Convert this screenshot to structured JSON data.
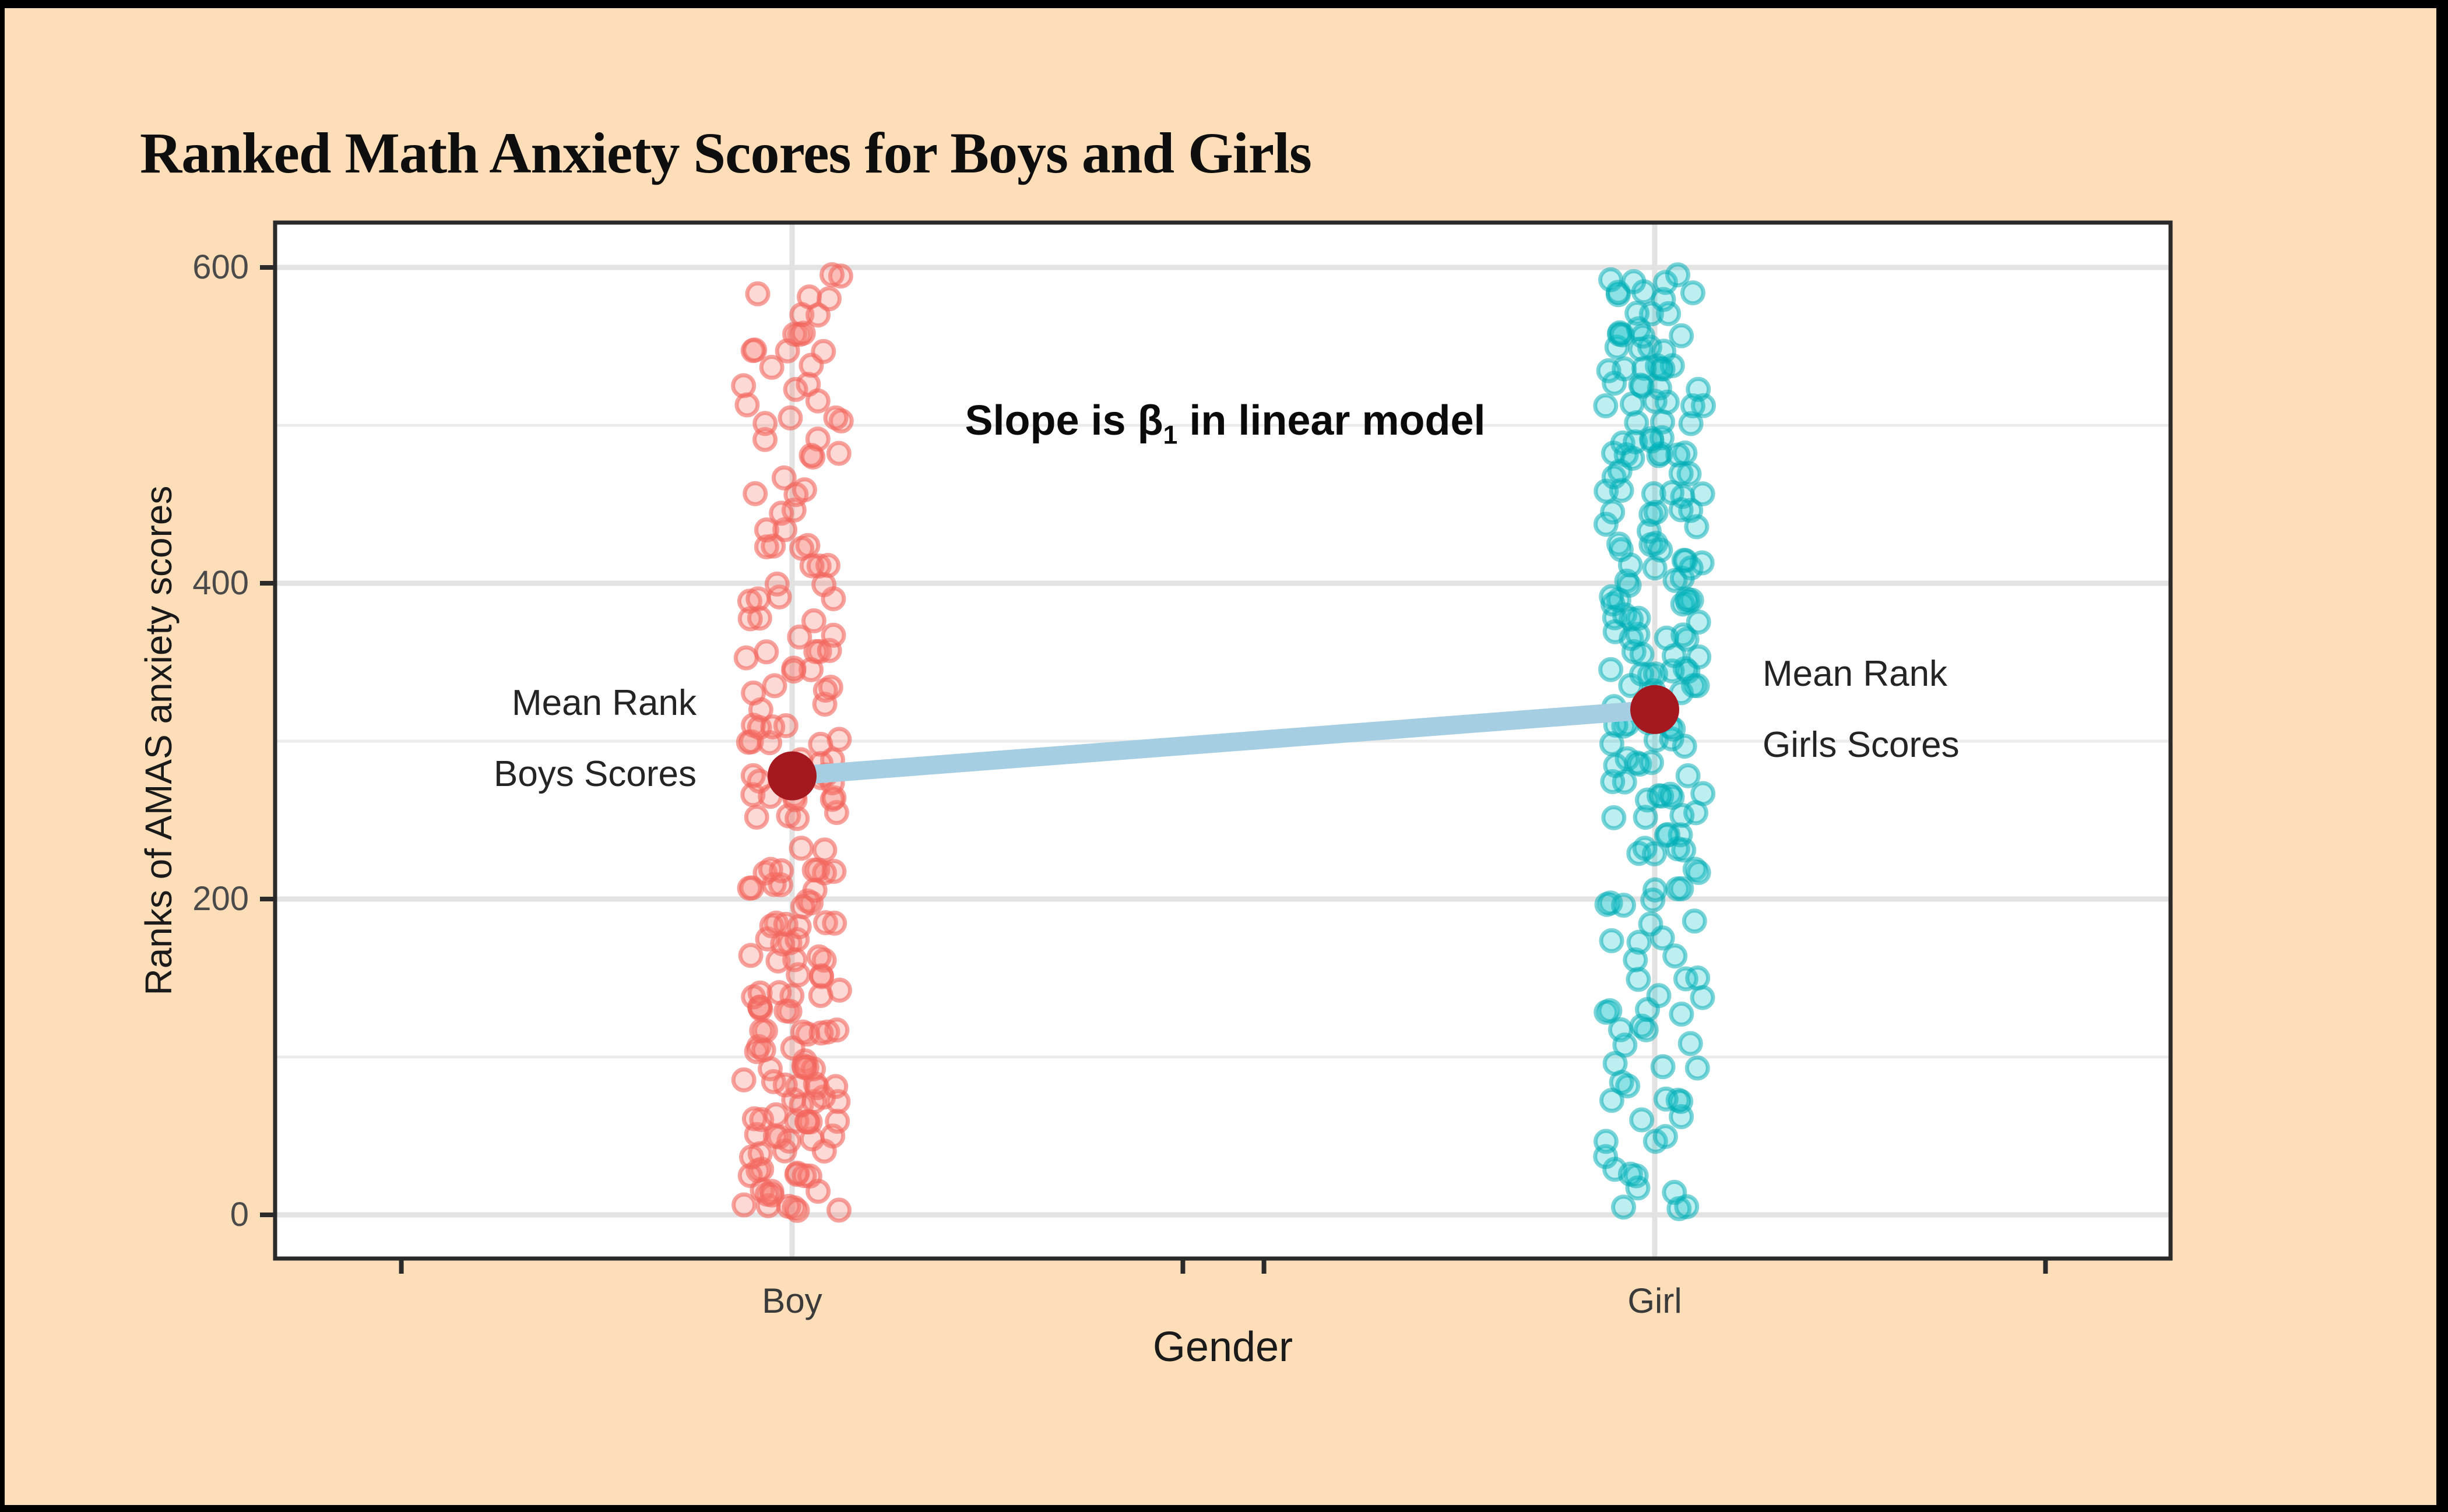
{
  "header": {
    "title": "Ranked Math Anxiety Scores for Boys and Girls"
  },
  "colors": {
    "background": "#FDDEB8",
    "frame": "#000000",
    "panel": "#FFFFFF",
    "panel_border": "#2A2A2A",
    "grid_major": "#E3E3E3",
    "grid_minor": "#EBEBEB",
    "grid_vertical": "#E2E2E2",
    "tick": "#2A2A2A",
    "tick_label": "#4A4A4A",
    "boy_point": "#F8766D",
    "girl_point": "#00BFC4",
    "mean_dot": "#A4191F",
    "trend_line": "#A6CEE3"
  },
  "chart_data": {
    "type": "scatter",
    "title": "Ranked Math Anxiety Scores for Boys and Girls",
    "xlabel": "Gender",
    "ylabel": "Ranks of AMAS anxiety scores",
    "categories": [
      "Boy",
      "Girl"
    ],
    "y_tick_values": [
      600,
      400,
      200,
      0
    ],
    "y_tick_labels": [
      "600",
      "400",
      "200",
      "0"
    ],
    "ylim": [
      0,
      628
    ],
    "grid": "horizontal major every 200 with minor every 100; vertical gridline at each category",
    "legend": "none",
    "x_tick_offset_units": 0.453,
    "jitter_half_width_units": 0.057,
    "jitter_seed": 7,
    "point_radius_px": 18,
    "rank_rows": [
      4,
      15,
      27,
      38,
      49,
      61,
      72,
      83,
      95,
      106,
      117,
      129,
      140,
      151,
      163,
      174,
      185,
      197,
      208,
      219,
      231,
      242,
      253,
      265,
      276,
      287,
      299,
      310,
      321,
      333,
      344,
      355,
      367,
      378,
      389,
      401,
      412,
      423,
      435,
      446,
      457,
      469,
      480,
      491,
      503,
      514,
      525,
      537,
      548,
      559,
      571,
      582,
      593
    ],
    "series": [
      {
        "name": "Boy",
        "color": "#F8766D",
        "mean_rank": 278,
        "counts": [
          6,
          5,
          7,
          4,
          6,
          8,
          5,
          7,
          6,
          4,
          7,
          5,
          6,
          3,
          5,
          4,
          6,
          3,
          5,
          7,
          2,
          0,
          4,
          6,
          5,
          3,
          5,
          4,
          2,
          4,
          3,
          5,
          2,
          3,
          4,
          2,
          3,
          4,
          2,
          2,
          3,
          1,
          3,
          2,
          4,
          2,
          3,
          2,
          4,
          3,
          2,
          3,
          2
        ]
      },
      {
        "name": "Girl",
        "color": "#00BFC4",
        "mean_rank": 320,
        "counts": [
          3,
          2,
          3,
          1,
          3,
          2,
          4,
          2,
          3,
          2,
          3,
          4,
          2,
          3,
          2,
          3,
          2,
          4,
          3,
          2,
          5,
          3,
          4,
          6,
          3,
          5,
          4,
          6,
          3,
          5,
          7,
          4,
          6,
          5,
          7,
          4,
          6,
          5,
          3,
          5,
          6,
          4,
          7,
          5,
          3,
          6,
          5,
          7,
          4,
          6,
          3,
          5,
          4
        ]
      }
    ],
    "mean_line": {
      "from_category": "Boy",
      "from_mean_rank": 278,
      "to_category": "Girl",
      "to_mean_rank": 320,
      "slope_ranks": 42,
      "color": "#A6CEE3"
    },
    "annotations": {
      "slope": {
        "prefix": "Slope is β",
        "sub": "1",
        "suffix": " in linear model"
      },
      "boy_mean": {
        "line1": "Mean Rank",
        "line2": "Boys Scores"
      },
      "girl_mean": {
        "line1": "Mean Rank",
        "line2": "Girls Scores"
      }
    }
  }
}
